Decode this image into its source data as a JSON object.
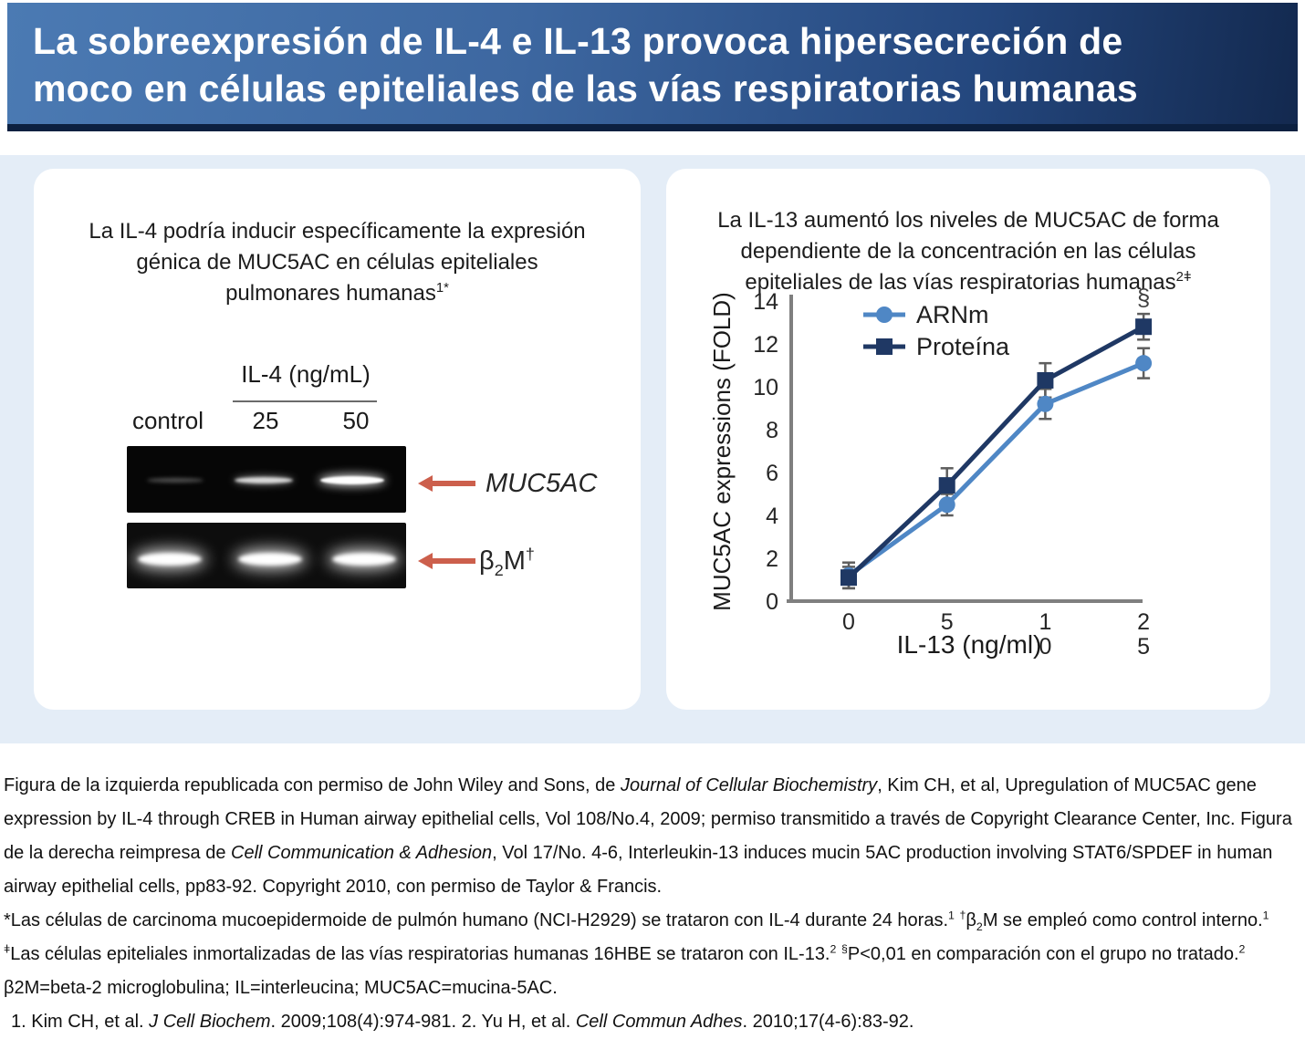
{
  "header": {
    "title_lines": [
      [
        {
          "t": "La sobreexpresión de IL-4 e IL-13 provoca hipersecreción de"
        }
      ],
      [
        {
          "t": "moco en células epiteliales de las vías respiratorias humanas"
        }
      ]
    ]
  },
  "left_panel": {
    "title_lines": [
      [
        {
          "t": "La IL-4 podría inducir específicamente la expresión"
        }
      ],
      [
        {
          "t": "génica de MUC5AC en células epiteliales"
        }
      ],
      [
        {
          "t": "pulmonares humanas"
        },
        {
          "t": "1*",
          "sup": true
        }
      ]
    ],
    "gel": {
      "group_label": "IL-4 (ng/mL)",
      "lanes": [
        "control",
        "25",
        "50"
      ],
      "row_labels": {
        "muc5ac": [
          {
            "t": "MUC5AC",
            "i": true
          }
        ],
        "b2m": [
          {
            "t": "β"
          },
          {
            "t": "2",
            "sub": true
          },
          {
            "t": "M"
          },
          {
            "t": "†",
            "sup": true
          }
        ]
      }
    }
  },
  "right_panel": {
    "title_lines": [
      [
        {
          "t": "La IL-13 aumentó los niveles de MUC5AC de forma"
        }
      ],
      [
        {
          "t": "dependiente de la concentración en las células"
        }
      ],
      [
        {
          "t": "epiteliales de las vías respiratorias humanas"
        },
        {
          "t": "2ǂ",
          "sup": true
        }
      ]
    ]
  },
  "chart_data": {
    "type": "line",
    "xlabel": "IL-13 (ng/ml)",
    "ylabel": "MUC5AC expressions (FOLD)",
    "x_values": [
      0,
      5,
      10,
      25
    ],
    "x_tick_lines": [
      [
        "0"
      ],
      [
        "5"
      ],
      [
        "1",
        "0"
      ],
      [
        "2",
        "5"
      ]
    ],
    "yticks": [
      0,
      2,
      4,
      6,
      8,
      10,
      12,
      14
    ],
    "ylim": [
      0,
      14
    ],
    "grid": false,
    "legend_position": "upper-left-inside",
    "annotation": {
      "text": "§",
      "at_x_index": 3
    },
    "series": [
      {
        "name": "ARNm",
        "marker": "circle",
        "color": "#4f87c5",
        "values": [
          1.2,
          4.5,
          9.2,
          11.1
        ],
        "errors": [
          0.6,
          0.5,
          0.7,
          0.7
        ]
      },
      {
        "name": "Proteína",
        "marker": "square",
        "color": "#1f3864",
        "values": [
          1.1,
          5.4,
          10.3,
          12.8
        ],
        "errors": [
          0.5,
          0.8,
          0.8,
          0.6
        ]
      }
    ]
  },
  "footer": {
    "paragraphs": [
      [
        {
          "t": "Figura de la izquierda republicada con permiso de John Wiley and Sons, de "
        },
        {
          "t": "Journal of Cellular Biochemistry",
          "i": true
        },
        {
          "t": ", Kim CH, et al, Upregulation of MUC5AC gene expression by IL-4 through CREB in Human airway epithelial cells, Vol 108/No.4, 2009; permiso transmitido a través de Copyright Clearance Center, Inc. Figura de la derecha reimpresa de "
        },
        {
          "t": "Cell Communication & Adhesion",
          "i": true
        },
        {
          "t": ", Vol 17/No. 4-6, Interleukin-13 induces mucin 5AC production involving STAT6/SPDEF in human airway epithelial cells, pp83-92. Copyright 2010, con permiso de Taylor & Francis."
        }
      ],
      [
        {
          "t": "*Las células de carcinoma mucoepidermoide de pulmón humano (NCI-H2929) se trataron con IL-4 durante 24 horas."
        },
        {
          "t": "1",
          "sup": true
        },
        {
          "t": " "
        },
        {
          "t": "†",
          "sup": true
        },
        {
          "t": "β"
        },
        {
          "t": "2",
          "sub": true
        },
        {
          "t": "M se empleó como control interno."
        },
        {
          "t": "1",
          "sup": true
        },
        {
          "t": " "
        },
        {
          "t": "ǂ",
          "sup": true
        },
        {
          "t": "Las células epiteliales inmortalizadas de las vías respiratorias humanas 16HBE se trataron con IL-13."
        },
        {
          "t": "2",
          "sup": true
        },
        {
          "t": " "
        },
        {
          "t": "§",
          "sup": true
        },
        {
          "t": "P<0,01 en comparación con el grupo no tratado."
        },
        {
          "t": "2",
          "sup": true
        }
      ],
      [
        {
          "t": "β2M=beta-2 microglobulina; IL=interleucina; MUC5AC=mucina-5AC."
        }
      ],
      [
        {
          "t": "1. Kim CH, et al. "
        },
        {
          "t": "J Cell Biochem",
          "i": true
        },
        {
          "t": ". 2009;108(4):974-981. 2. Yu H, et al. "
        },
        {
          "t": "Cell Commun Adhes",
          "i": true
        },
        {
          "t": ". 2010;17(4-6):83-92."
        }
      ]
    ]
  },
  "colors": {
    "arrow_accent": "#cc5f4c",
    "arnm_blue": "#4f87c5",
    "proteina_navy": "#1f3864",
    "band_background": "#e4edf7",
    "header_dark": "#0c2040"
  }
}
